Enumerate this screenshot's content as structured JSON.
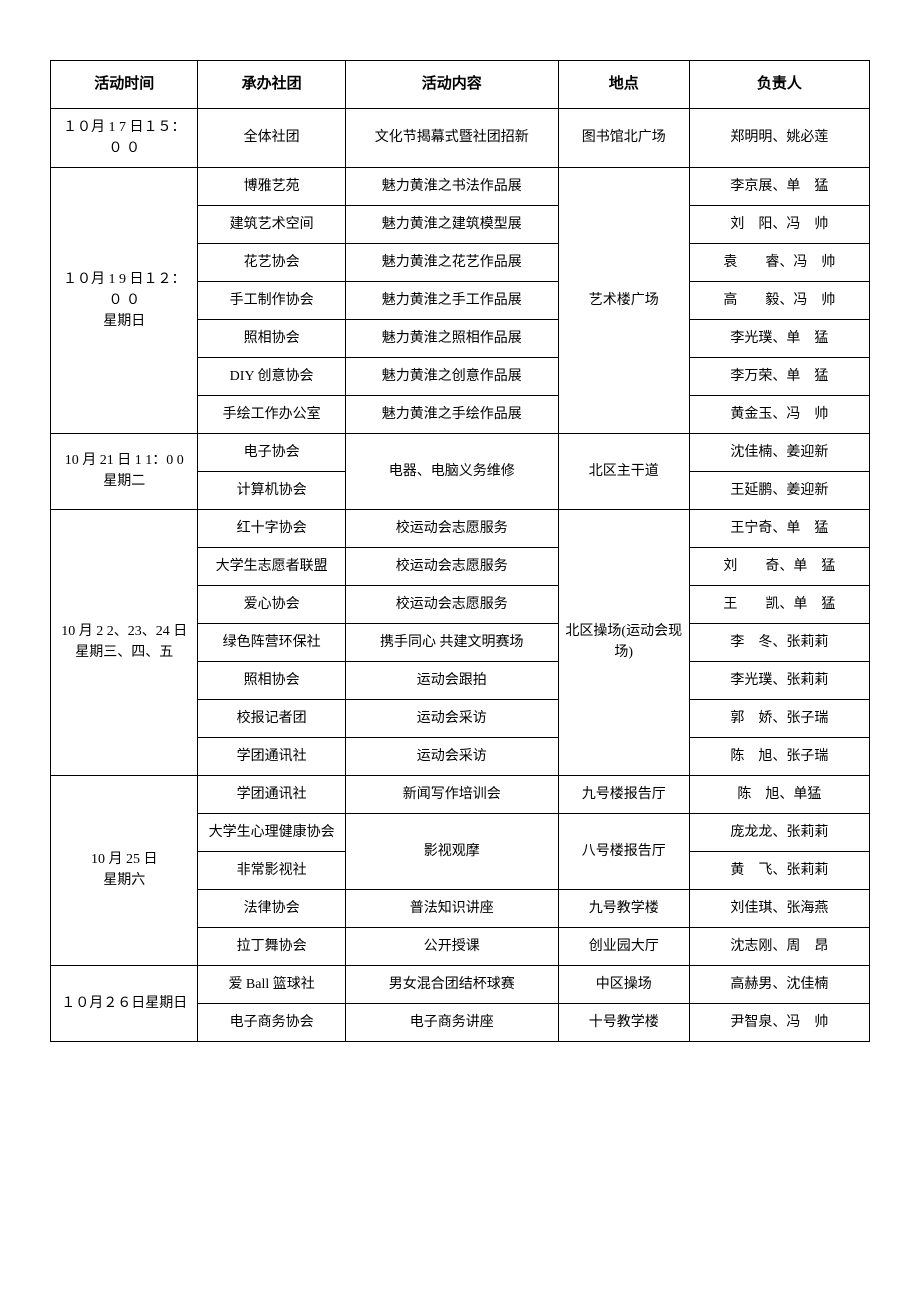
{
  "headers": {
    "time": "活动时间",
    "org": "承办社团",
    "content": "活动内容",
    "location": "地点",
    "person": "负责人"
  },
  "rows": [
    {
      "time": "１０月 1 7 日１５：０ ０",
      "org": "全体社团",
      "content": "文化节揭幕式暨社团招新",
      "location": "图书馆北广场",
      "person": "郑明明、姚必莲"
    },
    {
      "time": "",
      "org": "博雅艺苑",
      "content": "魅力黄淮之书法作品展",
      "location": "",
      "person": "李京展、单　猛"
    },
    {
      "time": "",
      "org": "建筑艺术空间",
      "content": "魅力黄淮之建筑模型展",
      "location": "",
      "person": "刘　阳、冯　帅"
    },
    {
      "time": "",
      "org": "花艺协会",
      "content": "魅力黄淮之花艺作品展",
      "location": "",
      "person": "袁　　睿、冯　帅"
    },
    {
      "time": "１０月 1 9 日１２：０ ０\n星期日",
      "org": "手工制作协会",
      "content": "魅力黄淮之手工作品展",
      "location": "艺术楼广场",
      "person": "高　　毅、冯　帅"
    },
    {
      "time": "",
      "org": "照相协会",
      "content": "魅力黄淮之照相作品展",
      "location": "",
      "person": "李光璞、单　猛"
    },
    {
      "time": "",
      "org": "DIY 创意协会",
      "content": "魅力黄淮之创意作品展",
      "location": "",
      "person": "李万荣、单　猛"
    },
    {
      "time": "",
      "org": "手绘工作办公室",
      "content": "魅力黄淮之手绘作品展",
      "location": "",
      "person": "黄金玉、冯　帅"
    },
    {
      "time": "10 月 21 日 1 1：0 0 星期二",
      "org": "电子协会",
      "content": "电器、电脑义务维修",
      "location": "北区主干道",
      "person": "沈佳楠、姜迎新"
    },
    {
      "time": "",
      "org": "计算机协会",
      "content": "",
      "location": "",
      "person": "王延鹏、姜迎新"
    },
    {
      "time": "",
      "org": "红十字协会",
      "content": "校运动会志愿服务",
      "location": "",
      "person": "王宁奇、单　猛"
    },
    {
      "time": "",
      "org": "大学生志愿者联盟",
      "content": "校运动会志愿服务",
      "location": "",
      "person": "刘　　奇、单　猛"
    },
    {
      "time": "10 月 2 2、23、24 日\n星期三、四、五",
      "org": "爱心协会",
      "content": "校运动会志愿服务",
      "location": "北区操场(运动会现场)",
      "person": "王　　凯、单　猛"
    },
    {
      "time": "",
      "org": "绿色阵营环保社",
      "content": "携手同心 共建文明赛场",
      "location": "",
      "person": "李　冬、张莉莉"
    },
    {
      "time": "",
      "org": "照相协会",
      "content": "运动会跟拍",
      "location": "",
      "person": "李光璞、张莉莉"
    },
    {
      "time": "",
      "org": "校报记者团",
      "content": "运动会采访",
      "location": "",
      "person": "郭　娇、张子瑞"
    },
    {
      "time": "",
      "org": "学团通讯社",
      "content": "运动会采访",
      "location": "",
      "person": "陈　旭、张子瑞"
    },
    {
      "time": "",
      "org": "学团通讯社",
      "content": "新闻写作培训会",
      "location": "九号楼报告厅",
      "person": "陈　旭、单猛"
    },
    {
      "time": "10 月 25 日\n星期六",
      "org": "大学生心理健康协会",
      "content": "影视观摩",
      "location": "八号楼报告厅",
      "person": "庞龙龙、张莉莉"
    },
    {
      "time": "",
      "org": "非常影视社",
      "content": "",
      "location": "",
      "person": "黄　飞、张莉莉"
    },
    {
      "time": "",
      "org": "法律协会",
      "content": "普法知识讲座",
      "location": "九号教学楼",
      "person": "刘佳琪、张海燕"
    },
    {
      "time": "",
      "org": "拉丁舞协会",
      "content": "公开授课",
      "location": "创业园大厅",
      "person": "沈志刚、周　昂"
    },
    {
      "time": "１０月２６日星期日",
      "org": "爱 Ball 篮球社",
      "content": "男女混合团结杯球赛",
      "location": "中区操场",
      "person": "高赫男、沈佳楠"
    },
    {
      "time": "",
      "org": "电子商务协会",
      "content": "电子商务讲座",
      "location": "十号教学楼",
      "person": "尹智泉、冯　帅"
    }
  ],
  "merges": {
    "time_spans": [
      1,
      7,
      2,
      7,
      5,
      2
    ],
    "row2_location_span": 7,
    "row9_content_span": 2,
    "row9_location_span": 2,
    "row11_location_span": 7,
    "row19_content_span": 2,
    "row19_location_span": 2
  },
  "style": {
    "border_color": "#000000",
    "background_color": "#ffffff",
    "font_size_header": 15,
    "font_size_cell": 14
  }
}
